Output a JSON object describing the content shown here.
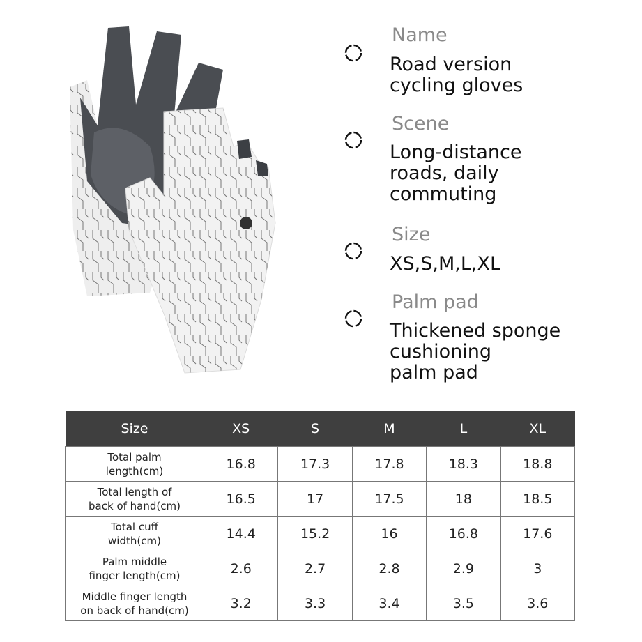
{
  "features": [
    {
      "label": "Name",
      "value": "Road version\ncycling gloves",
      "icon": "dashed-circle-icon"
    },
    {
      "label": "Scene",
      "value": "Long-distance\nroads, daily\ncommuting",
      "icon": "dashed-circle-icon"
    },
    {
      "label": "Size",
      "value": "XS,S,M,L,XL",
      "icon": "dashed-circle-icon"
    },
    {
      "label": "Palm pad",
      "value": "Thickened sponge\ncushioning\npalm pad",
      "icon": "dashed-circle-icon"
    }
  ],
  "size_table": {
    "headers": [
      "Size",
      "XS",
      "S",
      "M",
      "L",
      "XL"
    ],
    "rows": [
      {
        "label": "Total palm\nlength(cm)",
        "values": [
          "16.8",
          "17.3",
          "17.8",
          "18.3",
          "18.8"
        ]
      },
      {
        "label": "Total length of\nback of hand(cm)",
        "values": [
          "16.5",
          "17",
          "17.5",
          "18",
          "18.5"
        ]
      },
      {
        "label": "Total cuff\nwidth(cm)",
        "values": [
          "14.4",
          "15.2",
          "16",
          "16.8",
          "17.6"
        ]
      },
      {
        "label": "Palm middle\nfinger length(cm)",
        "values": [
          "2.6",
          "2.7",
          "2.8",
          "2.9",
          "3"
        ]
      },
      {
        "label": "Middle finger length\non back of hand(cm)",
        "values": [
          "3.2",
          "3.3",
          "3.4",
          "3.5",
          "3.6"
        ]
      }
    ]
  },
  "colors": {
    "header_bg": "#3f3f3f",
    "glove_white": "#f0f0f0",
    "glove_dark": "#4a4d52"
  }
}
